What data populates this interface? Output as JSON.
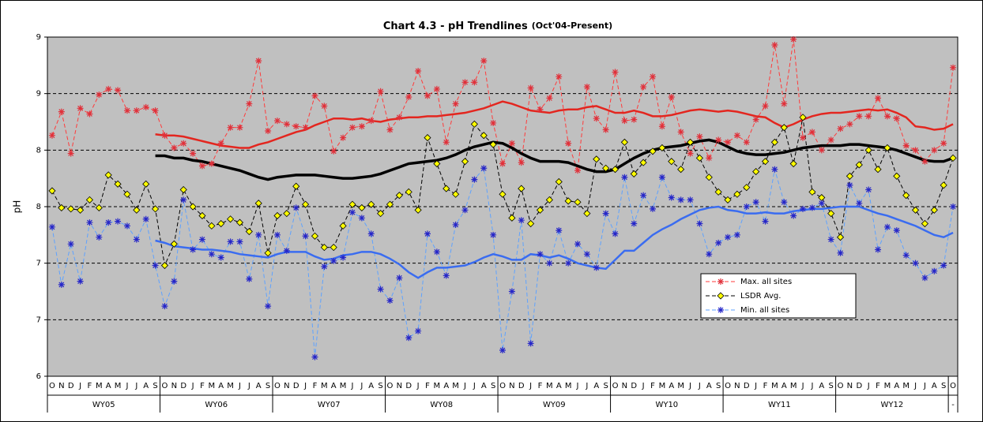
{
  "chart_data": {
    "type": "line",
    "title": "Chart 4.3 - pH Trendlines",
    "subtitle": "(Oct'04-Present)",
    "y_label": "pH",
    "categories": [
      "O",
      "N",
      "D",
      "J",
      "F",
      "M",
      "A",
      "M",
      "J",
      "J",
      "A",
      "S",
      "O",
      "N",
      "D",
      "J",
      "F",
      "M",
      "A",
      "M",
      "J",
      "J",
      "A",
      "S",
      "O",
      "N",
      "D",
      "J",
      "F",
      "M",
      "A",
      "M",
      "J",
      "J",
      "A",
      "S",
      "O",
      "N",
      "D",
      "J",
      "F",
      "M",
      "A",
      "M",
      "J",
      "J",
      "A",
      "S",
      "O",
      "N",
      "D",
      "J",
      "F",
      "M",
      "A",
      "M",
      "J",
      "J",
      "A",
      "S",
      "O",
      "N",
      "D",
      "J",
      "F",
      "M",
      "A",
      "M",
      "J",
      "J",
      "A",
      "S",
      "O",
      "N",
      "D",
      "J",
      "F",
      "M",
      "A",
      "M",
      "J",
      "J",
      "A",
      "S",
      "O",
      "N",
      "D",
      "J",
      "F",
      "M",
      "A",
      "M",
      "J",
      "J",
      "A",
      "S",
      "O"
    ],
    "category_groups": [
      "WY05",
      "WY06",
      "WY07",
      "WY08",
      "WY09",
      "WY10",
      "WY11",
      "WY12",
      "-"
    ],
    "ylim": [
      6,
      9
    ],
    "yticks": [
      6,
      {
        "value": 6.5,
        "label": "7"
      },
      7,
      {
        "value": 7.5,
        "label": "8"
      },
      8,
      {
        "value": 8.5,
        "label": "9"
      },
      9
    ],
    "grid": true,
    "legend": "lower right",
    "series": [
      {
        "name": "Max. all sites",
        "color": "#ff3b3b",
        "marker": "asterisk",
        "marker_color": "#e0303a",
        "values": [
          8.13,
          8.34,
          7.97,
          8.37,
          8.32,
          8.49,
          8.54,
          8.53,
          8.35,
          8.35,
          8.38,
          8.35,
          8.13,
          8.02,
          8.06,
          7.97,
          7.86,
          7.88,
          8.06,
          8.2,
          8.2,
          8.41,
          8.79,
          8.17,
          8.26,
          8.23,
          8.21,
          8.2,
          8.48,
          8.39,
          7.99,
          8.11,
          8.2,
          8.21,
          8.26,
          8.52,
          8.18,
          8.29,
          8.47,
          8.7,
          8.48,
          8.54,
          8.07,
          8.41,
          8.6,
          8.6,
          8.79,
          8.24,
          7.88,
          8.06,
          7.89,
          8.55,
          8.36,
          8.46,
          8.65,
          8.06,
          7.82,
          8.56,
          8.28,
          8.18,
          8.69,
          8.26,
          8.27,
          8.56,
          8.65,
          8.21,
          8.47,
          8.16,
          7.97,
          8.12,
          7.93,
          8.09,
          8.07,
          8.13,
          8.07,
          8.27,
          8.39,
          8.93,
          8.41,
          8.98,
          8.11,
          8.16,
          8.0,
          8.09,
          8.19,
          8.23,
          8.3,
          8.3,
          8.46,
          8.3,
          8.28,
          8.04,
          8.0,
          7.9,
          8.0,
          8.06,
          8.73
        ],
        "trend": {
          "color": "#e3261f",
          "values": [
            null,
            null,
            null,
            null,
            null,
            null,
            null,
            null,
            null,
            null,
            null,
            8.14,
            8.13,
            8.13,
            8.12,
            8.1,
            8.08,
            8.06,
            8.04,
            8.03,
            8.02,
            8.02,
            8.05,
            8.07,
            8.1,
            8.13,
            8.16,
            8.18,
            8.22,
            8.25,
            8.28,
            8.28,
            8.27,
            8.28,
            8.26,
            8.25,
            8.27,
            8.28,
            8.29,
            8.29,
            8.3,
            8.3,
            8.31,
            8.32,
            8.33,
            8.35,
            8.37,
            8.4,
            8.43,
            8.41,
            8.38,
            8.35,
            8.34,
            8.33,
            8.35,
            8.36,
            8.36,
            8.38,
            8.39,
            8.36,
            8.33,
            8.33,
            8.35,
            8.33,
            8.3,
            8.3,
            8.31,
            8.33,
            8.35,
            8.36,
            8.35,
            8.34,
            8.35,
            8.34,
            8.32,
            8.3,
            8.29,
            8.24,
            8.2,
            8.23,
            8.27,
            8.3,
            8.32,
            8.33,
            8.33,
            8.34,
            8.35,
            8.36,
            8.35,
            8.36,
            8.33,
            8.29,
            8.21,
            8.2,
            8.18,
            8.19,
            8.23
          ]
        }
      },
      {
        "name": "LSDR Avg.",
        "color": "#000000",
        "marker": "diamond",
        "marker_color": "#ffff00",
        "values": [
          7.64,
          7.49,
          7.48,
          7.47,
          7.56,
          7.49,
          7.78,
          7.7,
          7.61,
          7.47,
          7.7,
          7.48,
          6.98,
          7.17,
          7.65,
          7.5,
          7.42,
          7.33,
          7.35,
          7.39,
          7.36,
          7.28,
          7.53,
          7.09,
          7.42,
          7.44,
          7.68,
          7.52,
          7.24,
          7.14,
          7.14,
          7.33,
          7.52,
          7.49,
          7.52,
          7.44,
          7.52,
          7.6,
          7.63,
          7.47,
          8.11,
          7.88,
          7.66,
          7.61,
          7.9,
          8.23,
          8.13,
          8.05,
          7.61,
          7.4,
          7.66,
          7.35,
          7.47,
          7.56,
          7.72,
          7.55,
          7.54,
          7.44,
          7.92,
          7.84,
          7.83,
          8.07,
          7.79,
          7.89,
          7.99,
          8.02,
          7.9,
          7.83,
          8.07,
          7.93,
          7.76,
          7.63,
          7.56,
          7.61,
          7.67,
          7.81,
          7.9,
          8.07,
          8.2,
          7.88,
          8.29,
          7.63,
          7.58,
          7.44,
          7.23,
          7.77,
          7.87,
          8.0,
          7.83,
          8.02,
          7.77,
          7.6,
          7.47,
          7.35,
          7.47,
          7.69,
          7.93
        ],
        "trend": {
          "color": "#000000",
          "values": [
            null,
            null,
            null,
            null,
            null,
            null,
            null,
            null,
            null,
            null,
            null,
            7.95,
            7.95,
            7.93,
            7.93,
            7.91,
            7.9,
            7.88,
            7.86,
            7.84,
            7.82,
            7.79,
            7.76,
            7.74,
            7.76,
            7.77,
            7.78,
            7.78,
            7.78,
            7.77,
            7.76,
            7.75,
            7.75,
            7.76,
            7.77,
            7.79,
            7.82,
            7.85,
            7.88,
            7.89,
            7.9,
            7.91,
            7.93,
            7.96,
            8.0,
            8.03,
            8.05,
            8.07,
            8.06,
            8.02,
            7.97,
            7.93,
            7.9,
            7.9,
            7.9,
            7.89,
            7.86,
            7.83,
            7.81,
            7.81,
            7.83,
            7.88,
            7.93,
            7.97,
            8.0,
            8.02,
            8.03,
            8.04,
            8.06,
            8.08,
            8.09,
            8.07,
            8.03,
            7.99,
            7.97,
            7.96,
            7.96,
            7.97,
            7.98,
            8.0,
            8.02,
            8.03,
            8.04,
            8.04,
            8.04,
            8.05,
            8.05,
            8.04,
            8.03,
            8.02,
            8.0,
            7.97,
            7.94,
            7.91,
            7.9,
            7.9,
            7.93
          ]
        }
      },
      {
        "name": "Min. all sites",
        "color": "#5ea2ff",
        "marker": "asterisk",
        "marker_color": "#2626c8",
        "values": [
          7.32,
          6.81,
          7.17,
          6.84,
          7.36,
          7.23,
          7.36,
          7.37,
          7.33,
          7.21,
          7.39,
          6.98,
          6.62,
          6.84,
          7.56,
          7.12,
          7.21,
          7.08,
          7.05,
          7.19,
          7.19,
          6.86,
          7.25,
          6.62,
          7.25,
          7.11,
          7.49,
          7.24,
          6.17,
          6.97,
          7.02,
          7.05,
          7.45,
          7.4,
          7.26,
          6.77,
          6.67,
          6.87,
          6.34,
          6.4,
          7.26,
          7.1,
          6.89,
          7.34,
          7.47,
          7.74,
          7.84,
          7.25,
          6.23,
          6.75,
          7.38,
          6.29,
          7.08,
          7.0,
          7.29,
          7.0,
          7.17,
          7.08,
          6.96,
          7.44,
          7.26,
          7.76,
          7.35,
          7.6,
          7.48,
          7.76,
          7.58,
          7.56,
          7.56,
          7.35,
          7.08,
          7.18,
          7.23,
          7.25,
          7.5,
          7.54,
          7.37,
          7.83,
          7.54,
          7.42,
          7.48,
          7.49,
          7.53,
          7.21,
          7.09,
          7.69,
          7.53,
          7.65,
          7.12,
          7.32,
          7.29,
          7.07,
          7.0,
          6.87,
          6.93,
          6.98,
          7.5
        ],
        "trend": {
          "color": "#3a6cf0",
          "values": [
            null,
            null,
            null,
            null,
            null,
            null,
            null,
            null,
            null,
            null,
            null,
            7.2,
            7.18,
            7.15,
            7.14,
            7.13,
            7.12,
            7.12,
            7.11,
            7.1,
            7.08,
            7.07,
            7.06,
            7.05,
            7.08,
            7.1,
            7.1,
            7.1,
            7.06,
            7.03,
            7.04,
            7.07,
            7.08,
            7.1,
            7.1,
            7.08,
            7.04,
            6.99,
            6.92,
            6.87,
            6.92,
            6.96,
            6.96,
            6.97,
            6.98,
            7.01,
            7.05,
            7.08,
            7.06,
            7.03,
            7.03,
            7.08,
            7.07,
            7.05,
            7.07,
            7.04,
            7.0,
            6.98,
            6.96,
            6.95,
            7.03,
            7.11,
            7.11,
            7.18,
            7.25,
            7.3,
            7.34,
            7.39,
            7.43,
            7.47,
            7.49,
            7.5,
            7.47,
            7.46,
            7.44,
            7.44,
            7.45,
            7.44,
            7.44,
            7.46,
            7.47,
            7.48,
            7.48,
            7.49,
            7.5,
            7.5,
            7.5,
            7.47,
            7.44,
            7.42,
            7.39,
            7.36,
            7.33,
            7.29,
            7.25,
            7.23,
            7.27
          ]
        }
      }
    ]
  }
}
